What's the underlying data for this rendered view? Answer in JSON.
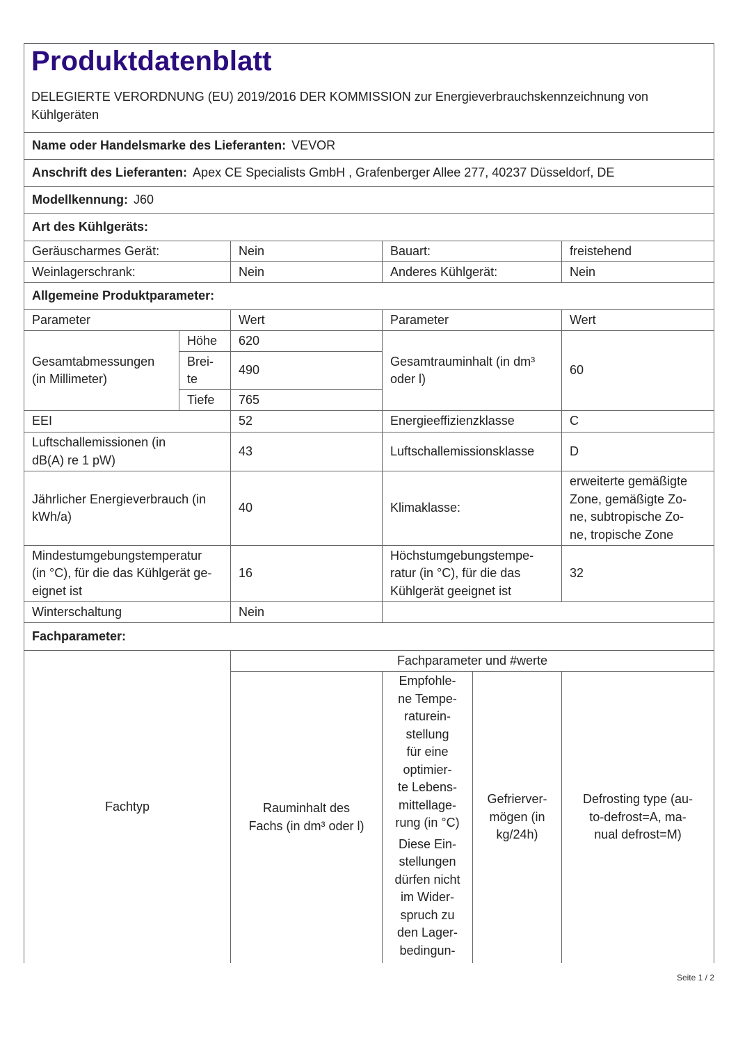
{
  "title": "Produktdatenblatt",
  "subtitle": "DELEGIERTE VERORDNUNG (EU) 2019/2016 DER KOMMISSION zur Energieverbrauchskennzeichnung von Kühlgeräten",
  "supplier": {
    "label": "Name oder Handelsmarke des Lieferanten:",
    "value": "VEVOR"
  },
  "address": {
    "label": "Anschrift des Lieferanten:",
    "value": "Apex CE Specialists GmbH , Grafenberger Allee 277, 40237 Düsseldorf, DE"
  },
  "model": {
    "label": "Modellkennung:",
    "value": "J60"
  },
  "type_section": "Art des Kühlgeräts:",
  "type_rows": [
    [
      "Geräuscharmes Gerät:",
      "Nein",
      "Bauart:",
      "freistehend"
    ],
    [
      "Weinlagerschrank:",
      "Nein",
      "Anderes Kühlgerät:",
      "Nein"
    ]
  ],
  "general_section": "Allgemeine Produktparameter:",
  "header": [
    "Parameter",
    "Wert",
    "Parameter",
    "Wert"
  ],
  "dimensions": {
    "label": "Gesamtabmessungen\n(in Millimeter)",
    "rows": [
      [
        "Höhe",
        "620"
      ],
      [
        "Brei-\nte",
        "490"
      ],
      [
        "Tiefe",
        "765"
      ]
    ],
    "right_label": "Gesamtrauminhalt (in dm³\noder l)",
    "right_value": "60"
  },
  "params": [
    [
      "EEI",
      "52",
      "Energieeffizienzklasse",
      "C"
    ],
    [
      "Luftschallemissionen (in\ndB(A) re 1 pW)",
      "43",
      "Luftschallemissionsklasse",
      "D"
    ],
    [
      "Jährlicher Energieverbrauch (in\nkWh/a)",
      "40",
      "Klimaklasse:",
      "erweiterte gemäßigte\nZone, gemäßigte Zo-\nne, subtropische Zo-\nne, tropische Zone"
    ],
    [
      "Mindestumgebungstemperatur\n(in °C), für die das Kühlgerät ge-\neignet ist",
      "16",
      "Höchstumgebungstempe-\nratur (in °C), für die das\nKühlgerät geeignet ist",
      "32"
    ],
    [
      "Winterschaltung",
      "Nein",
      "",
      ""
    ]
  ],
  "compartment_section": "Fachparameter:",
  "compartment": {
    "type_label": "Fachtyp",
    "group_header": "Fachparameter und #werte",
    "volume": "Rauminhalt des\nFachs (in dm³ oder l)",
    "temp_p1": "Empfohle-\nne Tempe-\nraturein-\nstellung\nfür eine\noptimier-\nte Lebens-\nmittellage-\nrung (in °C)",
    "temp_p2": "Diese Ein-\nstellungen\ndürfen nicht\nim Wider-\nspruch zu\nden Lager-\nbedingun-",
    "freezing": "Gefrierver-\nmögen (in\nkg/24h)",
    "defrost": "Defrosting type (au-\nto-defrost=A, ma-\nnual defrost=M)"
  },
  "footer": "Seite 1 / 2"
}
